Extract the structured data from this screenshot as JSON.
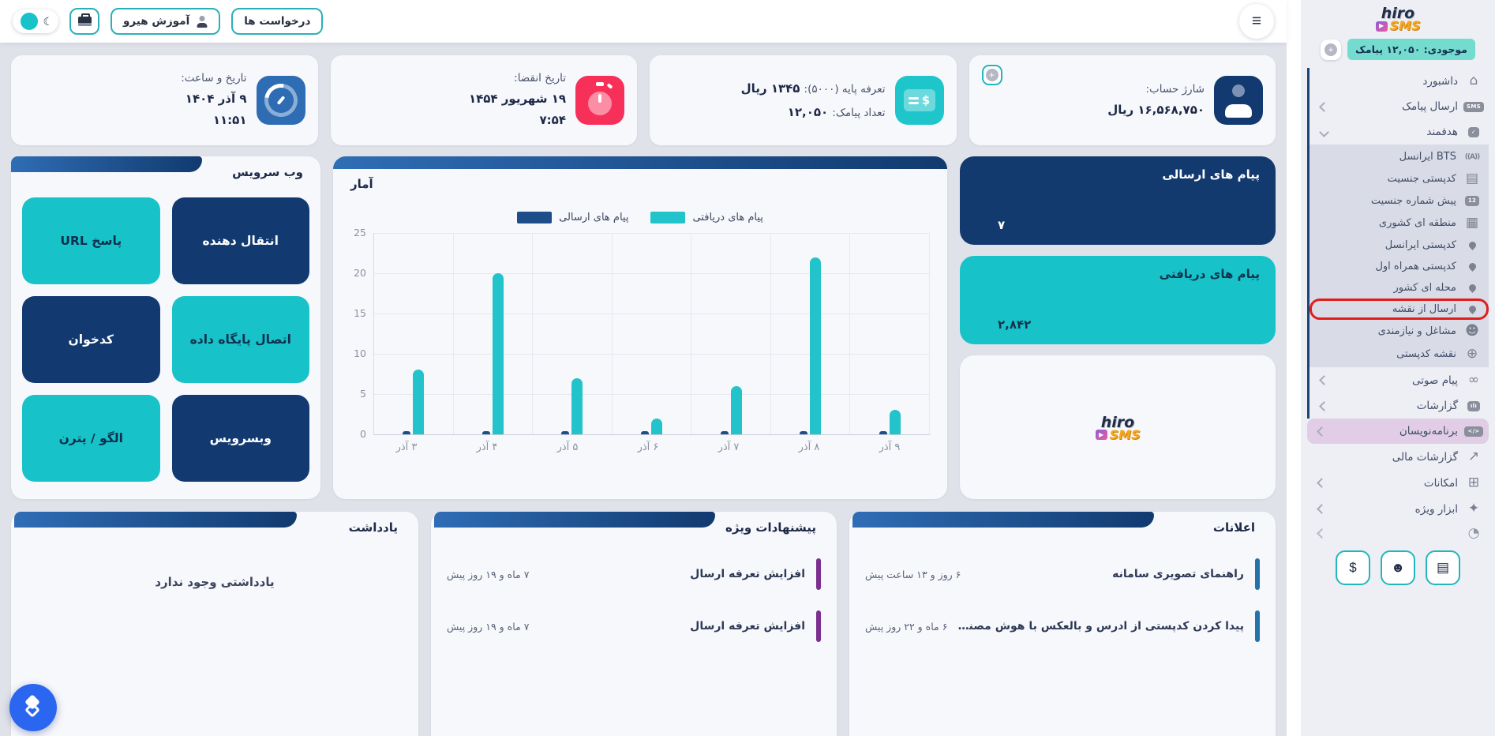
{
  "topbar": {
    "requests_label": "درخواست ها",
    "training_label": "آموزش هیرو"
  },
  "sidebar": {
    "logo": {
      "word1": "hiro",
      "word2": "SMS"
    },
    "balance": "موجودی: ۱۲,۰۵۰ پیامک",
    "menu_top": [
      {
        "label": "داشبورد"
      },
      {
        "label": "ارسال پیامک"
      },
      {
        "label": "هدفمند"
      }
    ],
    "submenu": [
      {
        "label": "BTS ایرانسل"
      },
      {
        "label": "کدپستی جنسیت"
      },
      {
        "label": "پیش شماره جنسیت"
      },
      {
        "label": "منطقه ای کشوری"
      },
      {
        "label": "کدپستی ایرانسل"
      },
      {
        "label": "کدپستی همراه اول"
      },
      {
        "label": "محله ای کشور"
      },
      {
        "label": "ارسال از نقشه"
      },
      {
        "label": "مشاغل و نیازمندی"
      },
      {
        "label": "نقشه کدپستی"
      }
    ],
    "menu_bottom": [
      {
        "label": "پیام صوتی"
      },
      {
        "label": "گزارشات"
      },
      {
        "label": "برنامه‌نویسان"
      },
      {
        "label": "گزارشات مالی"
      },
      {
        "label": "امکانات"
      },
      {
        "label": "ابزار ویژه"
      }
    ],
    "icons": {
      "sms_badge": "SMS",
      "check_badge": "✓",
      "prefix_badge": "12",
      "bts_badge": "((A))",
      "code_badge": "</>",
      "report_badge": "ılı"
    }
  },
  "stats": {
    "datetime": {
      "label": "تاریخ و ساعت:",
      "date": "۹ آذر ۱۴۰۴",
      "time": "۱۱:۵۱"
    },
    "expiry": {
      "label": "تاریخ انقضا:",
      "date": "۱۹ شهریور ۱۴۵۴",
      "time": "۷:۵۴"
    },
    "tariff": {
      "line1_label": "تعرفه پایه (۵۰۰۰):",
      "line1_value": "۱۳۴۵ ریال",
      "line2_label": "تعداد پیامک:",
      "line2_value": "۱۲,۰۵۰"
    },
    "charge": {
      "label": "شارژ حساب:",
      "value": "۱۶,۵۶۸,۷۵۰ ریال"
    }
  },
  "tiles": {
    "sent": {
      "title": "پیام های ارسالی",
      "value": "۷"
    },
    "received": {
      "title": "پیام های دریافتی",
      "value": "۲,۸۴۲"
    }
  },
  "webservice": {
    "title": "وب سرویس",
    "buttons": [
      {
        "label": "انتقال دهنده"
      },
      {
        "label": "پاسخ URL"
      },
      {
        "label": "اتصال پایگاه داده"
      },
      {
        "label": "کدخوان"
      },
      {
        "label": "وبسرویس"
      },
      {
        "label": "الگو / پترن"
      }
    ]
  },
  "chart_data": {
    "type": "bar",
    "title": "آمار",
    "categories": [
      "۳ آذر",
      "۴ آذر",
      "۵ آذر",
      "۶ آذر",
      "۷ آذر",
      "۸ آذر",
      "۹ آذر"
    ],
    "series": [
      {
        "name": "پیام های ارسالی",
        "color": "#1d4e89",
        "values": [
          0.3,
          0.3,
          0.3,
          0.3,
          0.3,
          0.3,
          0.3
        ]
      },
      {
        "name": "پیام های دریافتی",
        "color": "#22c3cb",
        "values": [
          8,
          20,
          7,
          2,
          6,
          22,
          3
        ]
      }
    ],
    "xlabel": "",
    "ylabel": "",
    "ylim": [
      0,
      25
    ],
    "yticks": [
      0,
      5,
      10,
      15,
      20,
      25
    ],
    "grid": true,
    "legend_position": "top"
  },
  "notes": {
    "title": "یادداشت",
    "empty_text": "یادداشتی وجود ندارد"
  },
  "offers": {
    "title": "پیشنهادات ویژه",
    "rows": [
      {
        "title": "افزایش تعرفه ارسال",
        "time": "۷ ماه و ۱۹ روز پیش"
      },
      {
        "title": "افزایش تعرفه ارسال",
        "time": "۷ ماه و ۱۹ روز پیش"
      }
    ]
  },
  "announcements": {
    "title": "اعلانات",
    "rows": [
      {
        "title": "راهنمای تصویری سامانه",
        "time": "۶ روز و ۱۳ ساعت پیش"
      },
      {
        "title": "پیدا کردن کدپستی از ادرس و بالعکس با هوش مصنوع...",
        "time": "۶ ماه و ۲۲ روز پیش"
      }
    ]
  }
}
